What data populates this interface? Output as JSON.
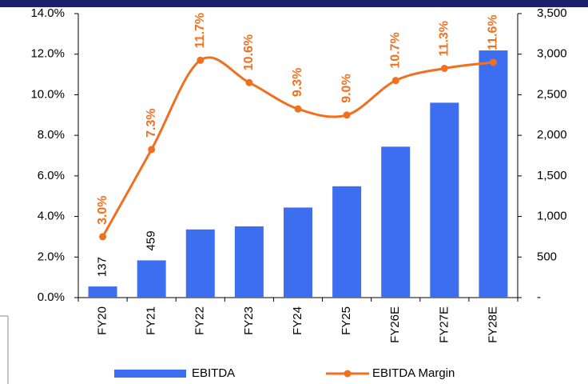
{
  "chart_data": {
    "type": "bar+line",
    "categories": [
      "FY20",
      "FY21",
      "FY22",
      "FY23",
      "FY24",
      "FY25",
      "FY26E",
      "FY27E",
      "FY28E"
    ],
    "series": [
      {
        "name": "EBITDA",
        "type": "bar",
        "axis": "y2",
        "color": "#3d6ef0",
        "values": [
          137,
          459,
          840,
          878,
          1110,
          1372,
          1860,
          2402,
          3046
        ],
        "value_labels": [
          "137",
          "459",
          "840",
          "878",
          "1,110",
          "1,372",
          "1,860",
          "2,402",
          "3,046"
        ]
      },
      {
        "name": "EBITDA Margin",
        "type": "line",
        "axis": "y",
        "color": "#f07020",
        "values": [
          3.0,
          7.3,
          11.7,
          10.6,
          9.3,
          9.0,
          10.7,
          11.3,
          11.6
        ],
        "value_labels": [
          "3.0%",
          "7.3%",
          "11.7%",
          "10.6%",
          "9.3%",
          "9.0%",
          "10.7%",
          "11.3%",
          "11.6%"
        ]
      }
    ],
    "ylim": [
      0,
      14
    ],
    "yticks": [
      {
        "value": 0,
        "label": "0.0%"
      },
      {
        "value": 2,
        "label": "2.0%"
      },
      {
        "value": 4,
        "label": "4.0%"
      },
      {
        "value": 6,
        "label": "6.0%"
      },
      {
        "value": 8,
        "label": "8.0%"
      },
      {
        "value": 10,
        "label": "10.0%"
      },
      {
        "value": 12,
        "label": "12.0%"
      },
      {
        "value": 14,
        "label": "14.0%"
      }
    ],
    "y2lim": [
      0,
      3500
    ],
    "y2ticks": [
      {
        "value": 0,
        "label": "-"
      },
      500,
      {
        "value": 1000,
        "label": "1,000"
      },
      {
        "value": 1500,
        "label": "1,500"
      },
      {
        "value": 2000,
        "label": "2,000"
      },
      {
        "value": 2500,
        "label": "2,500"
      },
      {
        "value": 3000,
        "label": "3,000"
      },
      {
        "value": 3500,
        "label": "3,500"
      }
    ],
    "legend": "bottom"
  }
}
